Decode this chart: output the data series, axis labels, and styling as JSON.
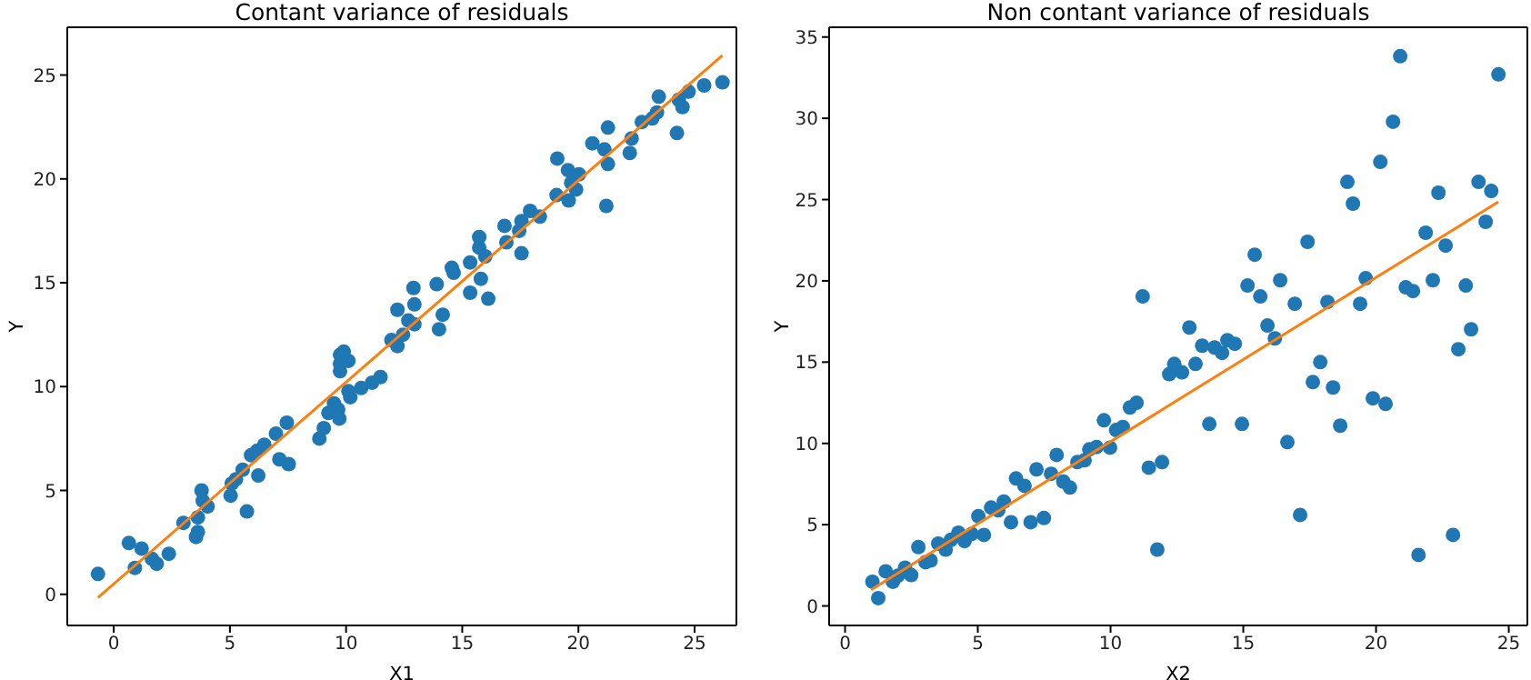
{
  "chart_data": [
    {
      "type": "scatter",
      "title": "Contant variance of residuals",
      "xlabel": "X1",
      "ylabel": "Y",
      "xlim": [
        -2,
        26.8
      ],
      "ylim": [
        -1.5,
        27.3
      ],
      "xticks": [
        0,
        5,
        10,
        15,
        20,
        25
      ],
      "yticks": [
        0,
        5,
        10,
        15,
        20,
        25
      ],
      "series": [
        {
          "type": "scatter",
          "marker": "circle",
          "color": "#1f77b4",
          "x": [
            -0.68,
            0.65,
            0.91,
            1.2,
            1.64,
            1.85,
            2.37,
            3.0,
            3.54,
            3.62,
            3.62,
            3.78,
            3.83,
            4.04,
            5.03,
            5.08,
            5.26,
            5.55,
            5.73,
            5.91,
            6.17,
            6.22,
            6.48,
            6.98,
            7.13,
            7.45,
            7.53,
            8.85,
            9.04,
            9.24,
            9.48,
            9.66,
            9.71,
            9.74,
            9.74,
            9.74,
            9.9,
            10.1,
            10.1,
            10.18,
            10.65,
            11.12,
            11.48,
            11.95,
            12.21,
            12.21,
            12.45,
            12.68,
            12.94,
            12.94,
            12.9,
            13.9,
            14.16,
            14.0,
            14.55,
            14.63,
            15.34,
            15.34,
            15.73,
            15.73,
            15.8,
            15.99,
            16.12,
            16.82,
            16.9,
            17.45,
            17.55,
            17.55,
            17.92,
            18.34,
            19.09,
            19.06,
            19.55,
            19.58,
            19.69,
            19.9,
            20.02,
            20.6,
            21.12,
            21.27,
            21.27,
            21.2,
            22.21,
            22.29,
            22.73,
            23.18,
            23.38,
            23.46,
            24.24,
            24.32,
            24.48,
            24.74,
            25.41,
            26.2
          ],
          "values": [
            0.98,
            2.47,
            1.27,
            2.2,
            1.71,
            1.47,
            1.95,
            3.44,
            2.76,
            3.0,
            3.7,
            5.0,
            4.5,
            4.23,
            4.75,
            5.33,
            5.54,
            6.0,
            3.99,
            6.7,
            6.91,
            5.72,
            7.2,
            7.73,
            6.5,
            8.26,
            6.27,
            7.5,
            8.0,
            8.73,
            9.19,
            8.9,
            8.46,
            10.74,
            11.1,
            11.53,
            11.68,
            11.24,
            9.78,
            9.49,
            9.93,
            10.19,
            10.46,
            12.24,
            11.95,
            13.7,
            12.5,
            13.18,
            13.0,
            13.96,
            14.75,
            14.93,
            13.46,
            12.76,
            15.72,
            15.48,
            15.98,
            14.52,
            17.2,
            16.69,
            15.19,
            16.27,
            14.23,
            17.74,
            16.95,
            17.5,
            17.97,
            16.42,
            18.46,
            18.18,
            20.98,
            19.22,
            20.42,
            18.96,
            19.81,
            19.49,
            20.22,
            21.71,
            21.42,
            22.47,
            20.72,
            18.7,
            21.25,
            21.95,
            22.74,
            22.91,
            23.2,
            23.96,
            22.21,
            23.81,
            23.46,
            24.2,
            24.5,
            24.65
          ]
        },
        {
          "type": "line",
          "color": "#ff7f0e",
          "x": [
            -0.68,
            26.2
          ],
          "values": [
            -0.16,
            25.95
          ]
        }
      ]
    },
    {
      "type": "scatter",
      "title": "Non contant variance of residuals",
      "xlabel": "X2",
      "ylabel": "Y",
      "xlim": [
        -0.6,
        25.7
      ],
      "ylim": [
        -1.2,
        35.6
      ],
      "xticks": [
        0,
        5,
        10,
        15,
        20,
        25
      ],
      "yticks": [
        0,
        5,
        10,
        15,
        20,
        25,
        30,
        35
      ],
      "series": [
        {
          "type": "scatter",
          "marker": "circle",
          "color": "#1f77b4",
          "x": [
            1.03,
            1.25,
            1.53,
            1.8,
            1.99,
            2.26,
            2.49,
            2.76,
            3.03,
            3.22,
            3.51,
            3.79,
            3.99,
            4.27,
            4.5,
            4.77,
            5.02,
            5.23,
            5.5,
            5.77,
            5.98,
            6.25,
            6.44,
            6.76,
            6.99,
            7.21,
            7.49,
            7.76,
            7.97,
            8.22,
            8.47,
            8.75,
            9.02,
            9.2,
            9.47,
            9.75,
            9.98,
            10.21,
            10.46,
            10.73,
            10.98,
            11.21,
            11.44,
            11.76,
            11.94,
            12.21,
            12.4,
            12.69,
            12.97,
            13.2,
            13.45,
            13.72,
            13.92,
            14.2,
            14.4,
            14.68,
            14.95,
            15.16,
            15.43,
            15.64,
            15.91,
            16.19,
            16.39,
            16.66,
            16.94,
            17.14,
            17.42,
            17.62,
            17.9,
            18.17,
            18.38,
            18.65,
            18.92,
            19.13,
            19.4,
            19.61,
            19.88,
            20.16,
            20.36,
            20.64,
            20.91,
            21.12,
            21.39,
            21.6,
            21.87,
            22.14,
            22.35,
            22.62,
            22.9,
            23.1,
            23.38,
            23.58,
            23.86,
            24.13,
            24.34,
            24.61
          ],
          "values": [
            1.49,
            0.48,
            2.13,
            1.49,
            1.86,
            2.35,
            1.9,
            3.62,
            2.69,
            2.8,
            3.84,
            3.47,
            4.07,
            4.51,
            3.99,
            4.43,
            5.52,
            4.37,
            6.05,
            5.89,
            6.42,
            5.15,
            7.84,
            7.39,
            5.15,
            8.4,
            5.41,
            8.13,
            9.29,
            7.65,
            7.28,
            8.85,
            8.96,
            9.63,
            9.78,
            11.42,
            9.74,
            10.82,
            11.01,
            12.21,
            12.5,
            19.04,
            8.51,
            3.47,
            8.85,
            14.26,
            14.89,
            14.37,
            17.13,
            14.89,
            16.01,
            11.2,
            15.9,
            15.57,
            16.35,
            16.13,
            11.2,
            19.71,
            21.61,
            19.04,
            17.25,
            16.46,
            20.04,
            10.08,
            18.59,
            5.6,
            22.4,
            13.77,
            15.0,
            18.7,
            13.44,
            11.09,
            26.09,
            24.75,
            18.59,
            20.16,
            12.77,
            27.32,
            12.43,
            29.79,
            33.82,
            19.6,
            19.37,
            3.14,
            22.96,
            20.04,
            25.42,
            22.17,
            4.37,
            15.79,
            19.71,
            17.02,
            26.09,
            23.63,
            25.53,
            32.7
          ]
        },
        {
          "type": "line",
          "color": "#ff7f0e",
          "x": [
            0.98,
            24.61
          ],
          "values": [
            1.0,
            24.86
          ]
        }
      ]
    }
  ]
}
